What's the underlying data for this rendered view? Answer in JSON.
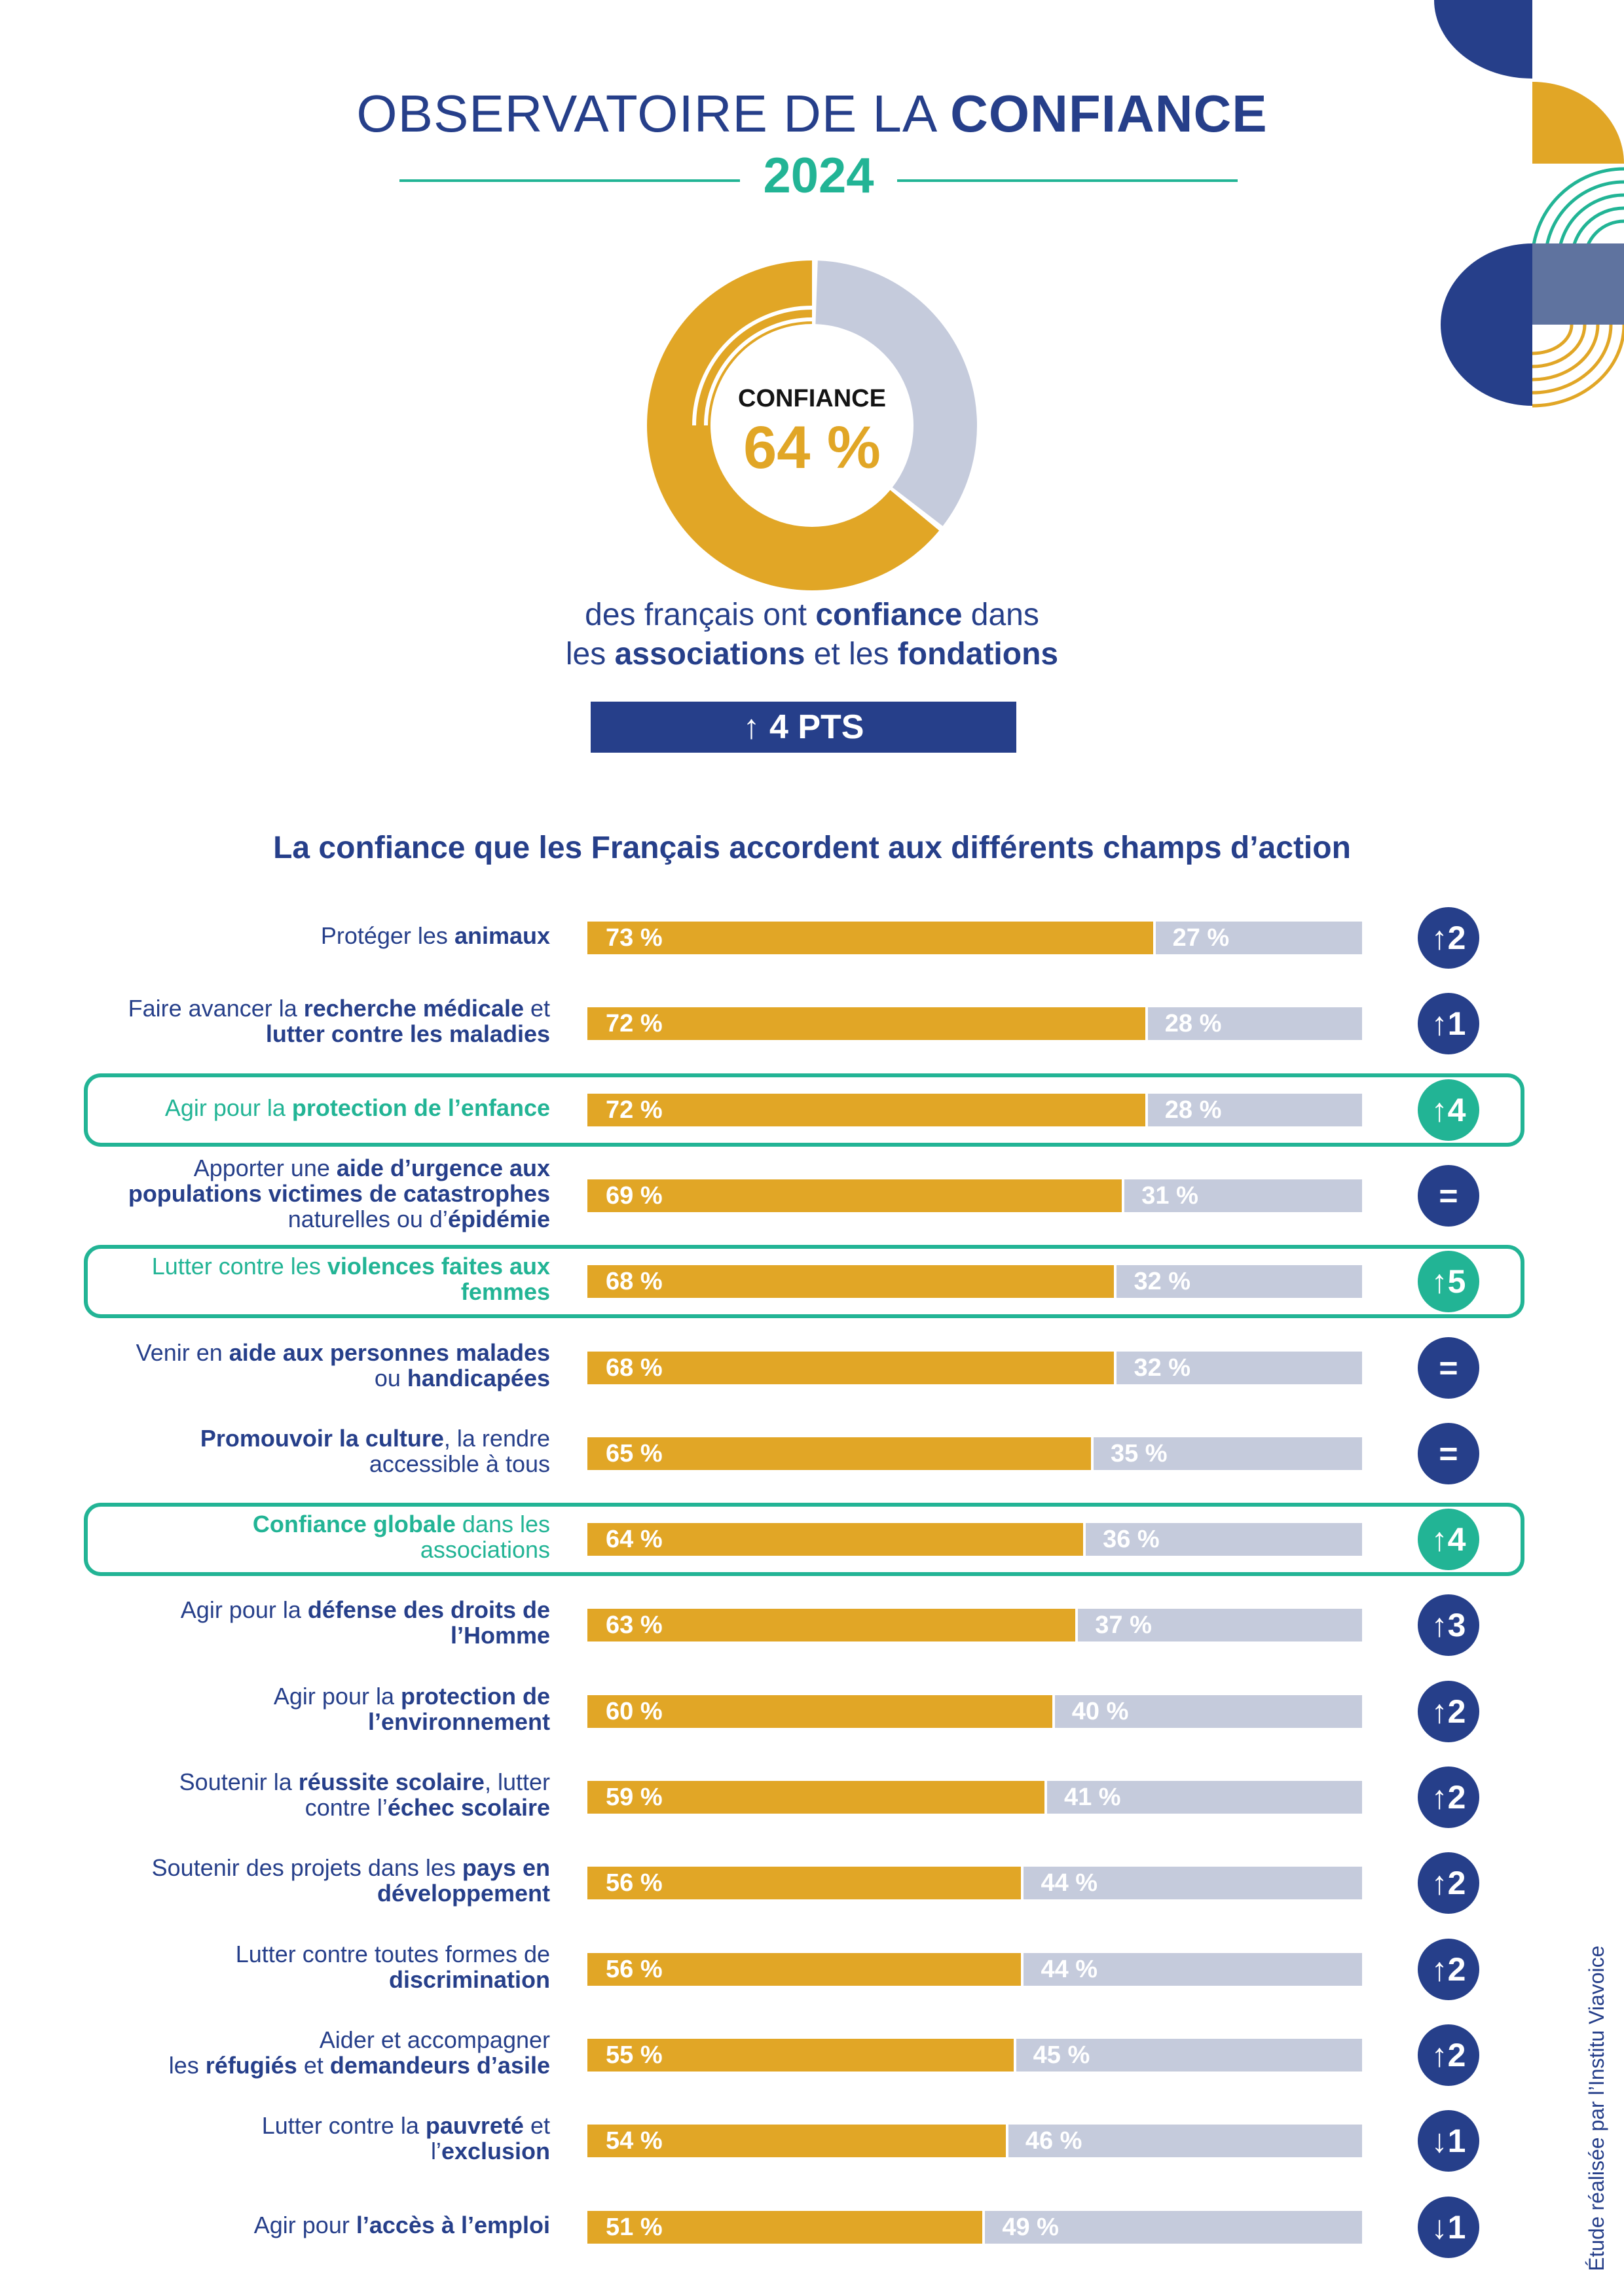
{
  "header": {
    "title_light": "OBSERVATOIRE DE LA ",
    "title_bold": "CONFIANCE",
    "year": "2024"
  },
  "donut": {
    "label": "CONFIANCE",
    "value_text": "64 %",
    "value": 64,
    "colors": {
      "yes": "#e1a626",
      "no": "#c5cbdc"
    }
  },
  "subtitle": {
    "part1": "des français ont ",
    "bold1": "confiance",
    "part2": " dans",
    "part3": "les ",
    "bold2": "associations",
    "part4": " et les ",
    "bold3": "fondations"
  },
  "change_badge": "↑ 4 PTS",
  "chart_heading": "La confiance que les Français accordent aux différents champs d’action",
  "chart_data": {
    "type": "bar",
    "orientation": "horizontal-stacked",
    "title": "La confiance que les Français accordent aux différents champs d’action",
    "xlim": [
      0,
      100
    ],
    "colors": {
      "confiance": "#e1a626",
      "pas_confiance": "#c5cbdc",
      "highlight": "#22b495",
      "neutral": "#263f8a"
    },
    "rows": [
      {
        "label_parts": [
          [
            "Protéger les ",
            false
          ],
          [
            "animaux",
            true
          ]
        ],
        "yes": 73,
        "no": 27,
        "yes_label": "73 %",
        "no_label": "27 %",
        "change": "↑2",
        "highlight": false
      },
      {
        "label_parts": [
          [
            "Faire avancer la ",
            false
          ],
          [
            "recherche médicale",
            true
          ],
          [
            " et ",
            false
          ],
          [
            "\n",
            false
          ],
          [
            "lutter contre les maladies",
            true
          ]
        ],
        "yes": 72,
        "no": 28,
        "yes_label": "72 %",
        "no_label": "28 %",
        "change": "↑1",
        "highlight": false
      },
      {
        "label_parts": [
          [
            "Agir pour la ",
            false
          ],
          [
            "protection de l’enfance",
            true
          ]
        ],
        "yes": 72,
        "no": 28,
        "yes_label": "72 %",
        "no_label": "28 %",
        "change": "↑4",
        "highlight": true
      },
      {
        "label_parts": [
          [
            "Apporter une ",
            false
          ],
          [
            "aide d’urgence aux",
            true
          ],
          [
            "\n",
            false
          ],
          [
            "populations victimes de catastrophes",
            true
          ],
          [
            "\n",
            false
          ],
          [
            "naturelles ou d’",
            false
          ],
          [
            "épidémie",
            true
          ]
        ],
        "yes": 69,
        "no": 31,
        "yes_label": "69 %",
        "no_label": "31 %",
        "change": "=",
        "highlight": false
      },
      {
        "label_parts": [
          [
            "Lutter contre les ",
            false
          ],
          [
            "violences faites aux",
            true
          ],
          [
            "\n",
            false
          ],
          [
            "femmes",
            true
          ]
        ],
        "yes": 68,
        "no": 32,
        "yes_label": "68 %",
        "no_label": "32 %",
        "change": "↑5",
        "highlight": true
      },
      {
        "label_parts": [
          [
            "Venir en ",
            false
          ],
          [
            "aide aux personnes malades",
            true
          ],
          [
            "\n",
            false
          ],
          [
            "ou ",
            false
          ],
          [
            "handicapées",
            true
          ]
        ],
        "yes": 68,
        "no": 32,
        "yes_label": "68 %",
        "no_label": "32 %",
        "change": "=",
        "highlight": false
      },
      {
        "label_parts": [
          [
            "Promouvoir la culture",
            true
          ],
          [
            ", la rendre",
            false
          ],
          [
            "\n",
            false
          ],
          [
            "accessible à tous",
            false
          ]
        ],
        "yes": 65,
        "no": 35,
        "yes_label": "65 %",
        "no_label": "35 %",
        "change": "=",
        "highlight": false
      },
      {
        "label_parts": [
          [
            "Confiance globale",
            true
          ],
          [
            " dans les",
            false
          ],
          [
            "\n",
            false
          ],
          [
            "associations",
            false
          ]
        ],
        "yes": 64,
        "no": 36,
        "yes_label": "64 %",
        "no_label": "36 %",
        "change": "↑4",
        "highlight": true
      },
      {
        "label_parts": [
          [
            "Agir pour la ",
            false
          ],
          [
            "défense des droits de",
            true
          ],
          [
            "\n",
            false
          ],
          [
            "l’Homme",
            true
          ]
        ],
        "yes": 63,
        "no": 37,
        "yes_label": "63 %",
        "no_label": "37 %",
        "change": "↑3",
        "highlight": false
      },
      {
        "label_parts": [
          [
            "Agir pour la ",
            false
          ],
          [
            "protection de",
            true
          ],
          [
            "\n",
            false
          ],
          [
            "l’environnement",
            true
          ]
        ],
        "yes": 60,
        "no": 40,
        "yes_label": "60 %",
        "no_label": "40 %",
        "change": "↑2",
        "highlight": false
      },
      {
        "label_parts": [
          [
            "Soutenir la ",
            false
          ],
          [
            "réussite scolaire",
            true
          ],
          [
            ", lutter",
            false
          ],
          [
            "\n",
            false
          ],
          [
            "contre l’",
            false
          ],
          [
            "échec scolaire",
            true
          ]
        ],
        "yes": 59,
        "no": 41,
        "yes_label": "59 %",
        "no_label": "41 %",
        "change": "↑2",
        "highlight": false
      },
      {
        "label_parts": [
          [
            "Soutenir des projets dans les ",
            false
          ],
          [
            "pays en",
            true
          ],
          [
            "\n",
            false
          ],
          [
            "développement",
            true
          ]
        ],
        "yes": 56,
        "no": 44,
        "yes_label": "56 %",
        "no_label": "44 %",
        "change": "↑2",
        "highlight": false
      },
      {
        "label_parts": [
          [
            "Lutter contre toutes formes de",
            false
          ],
          [
            "\n",
            false
          ],
          [
            "discrimination",
            true
          ]
        ],
        "yes": 56,
        "no": 44,
        "yes_label": "56 %",
        "no_label": "44 %",
        "change": "↑2",
        "highlight": false
      },
      {
        "label_parts": [
          [
            "Aider et accompagner",
            false
          ],
          [
            "\n",
            false
          ],
          [
            "les ",
            false
          ],
          [
            "réfugiés",
            true
          ],
          [
            " et ",
            false
          ],
          [
            "demandeurs d’asile",
            true
          ]
        ],
        "yes": 55,
        "no": 45,
        "yes_label": "55 %",
        "no_label": "45 %",
        "change": "↑2",
        "highlight": false
      },
      {
        "label_parts": [
          [
            "Lutter contre la ",
            false
          ],
          [
            "pauvreté",
            true
          ],
          [
            " et",
            false
          ],
          [
            "\n",
            false
          ],
          [
            "l’",
            false
          ],
          [
            "exclusion",
            true
          ]
        ],
        "yes": 54,
        "no": 46,
        "yes_label": "54 %",
        "no_label": "46 %",
        "change": "↓1",
        "highlight": false
      },
      {
        "label_parts": [
          [
            "Agir pour ",
            false
          ],
          [
            "l’accès à l’emploi",
            true
          ]
        ],
        "yes": 51,
        "no": 49,
        "yes_label": "51 %",
        "no_label": "49 %",
        "change": "↓1",
        "highlight": false
      }
    ]
  },
  "credit": "Étude réalisée par l’Institu Viavoice"
}
